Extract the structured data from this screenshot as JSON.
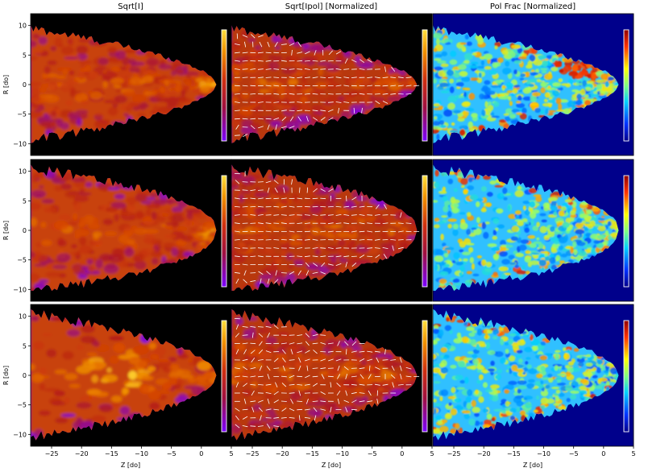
{
  "chart_data": {
    "type": "heatmap",
    "layout": {
      "rows": 3,
      "cols": 3
    },
    "column_titles": [
      "Sqrt[I]",
      "Sqrt[Ipol] [Normalized]",
      "Pol Frac [Normalized]"
    ],
    "xlabel": "Z [do]",
    "ylabel": "R [do]",
    "xlim": [
      -28.5,
      5
    ],
    "ylim": [
      -12,
      12
    ],
    "xticks": [
      -25,
      -20,
      -15,
      -10,
      -5,
      0,
      5
    ],
    "yticks": [
      10,
      5,
      0,
      -5,
      -10
    ],
    "xtick_labels": [
      "−25",
      "−20",
      "−15",
      "−10",
      "−5",
      "0",
      "5"
    ],
    "ytick_labels": [
      "10",
      "5",
      "0",
      "−5",
      "−10"
    ],
    "background_colors": {
      "intensity": "#000000",
      "polfrac": "#00008b"
    },
    "colormaps": {
      "intensity": [
        "#7a00ff",
        "#b01a1a",
        "#d84a00",
        "#f5a000",
        "#ffe040"
      ],
      "polfrac": [
        "#00008b",
        "#0050ff",
        "#00d0ff",
        "#a0ff60",
        "#ffe000",
        "#ff4000",
        "#b00000"
      ]
    },
    "rows": [
      {
        "shape": "narrow jet",
        "head_z": 2,
        "polarization_vectors": "mostly horizontal"
      },
      {
        "shape": "medium jet",
        "head_z": 2,
        "polarization_vectors": "mostly horizontal"
      },
      {
        "shape": "wide jet",
        "head_z": 2,
        "polarization_vectors": "mixed orientation"
      }
    ]
  }
}
